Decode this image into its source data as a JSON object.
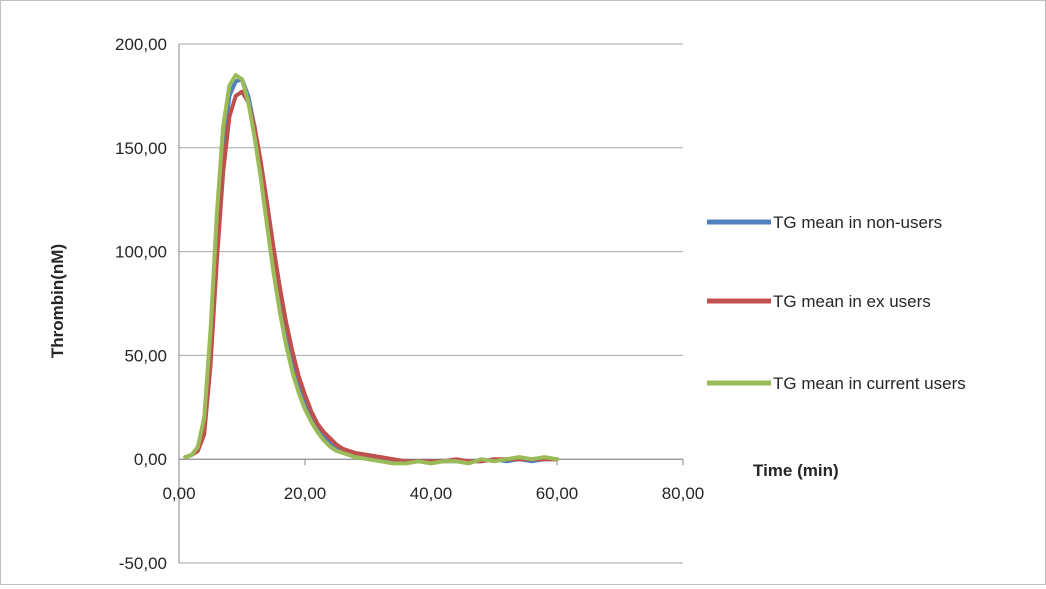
{
  "chart_data": {
    "type": "line",
    "title": "",
    "xlabel": "Time (min)",
    "ylabel": "Thrombin(nM)",
    "xlim": [
      0,
      80
    ],
    "ylim": [
      -50,
      200
    ],
    "x_ticks": [
      0,
      20,
      40,
      60,
      80
    ],
    "x_tick_labels": [
      "0,00",
      "20,00",
      "40,00",
      "60,00",
      "80,00"
    ],
    "y_ticks": [
      200,
      150,
      100,
      50,
      0,
      -50
    ],
    "y_tick_labels": [
      "200,00",
      "150,00",
      "100,00",
      "50,00",
      "0,00",
      "-50,00"
    ],
    "grid": "horizontal",
    "legend_position": "right",
    "series": [
      {
        "name": "TG mean in non-users",
        "color": "#4f81bd",
        "x": [
          1,
          2,
          3,
          4,
          5,
          6,
          7,
          8,
          9,
          10,
          11,
          12,
          13,
          14,
          15,
          16,
          17,
          18,
          19,
          20,
          21,
          22,
          23,
          24,
          25,
          26,
          27,
          28,
          30,
          32,
          34,
          36,
          38,
          40,
          42,
          44,
          46,
          48,
          50,
          52,
          54,
          56,
          58,
          60
        ],
        "y": [
          1,
          2,
          5,
          15,
          55,
          110,
          150,
          175,
          182,
          183,
          175,
          160,
          140,
          118,
          97,
          77,
          60,
          47,
          36,
          27,
          20,
          15,
          11,
          8,
          6,
          4,
          3,
          2,
          1,
          0,
          -1,
          -1,
          -1,
          -1,
          -1,
          -1,
          -1,
          -1,
          0,
          -1,
          0,
          -1,
          0,
          0
        ]
      },
      {
        "name": "TG mean in ex users",
        "color": "#c0504d",
        "x": [
          1,
          2,
          3,
          4,
          5,
          6,
          7,
          8,
          9,
          10,
          11,
          12,
          13,
          14,
          15,
          16,
          17,
          18,
          19,
          20,
          21,
          22,
          23,
          24,
          25,
          26,
          27,
          28,
          30,
          32,
          34,
          36,
          38,
          40,
          42,
          44,
          46,
          48,
          50,
          52,
          54,
          56,
          58,
          60
        ],
        "y": [
          1,
          2,
          4,
          12,
          45,
          95,
          138,
          165,
          175,
          177,
          172,
          160,
          143,
          123,
          102,
          83,
          66,
          52,
          40,
          31,
          23,
          17,
          13,
          10,
          7,
          5,
          4,
          3,
          2,
          1,
          0,
          -1,
          -1,
          -1,
          -1,
          0,
          -1,
          -1,
          0,
          0,
          0,
          0,
          0,
          0
        ]
      },
      {
        "name": "TG mean in current users",
        "color": "#9bbb59",
        "x": [
          1,
          2,
          3,
          4,
          5,
          6,
          7,
          8,
          9,
          10,
          11,
          12,
          13,
          14,
          15,
          16,
          17,
          18,
          19,
          20,
          21,
          22,
          23,
          24,
          25,
          26,
          27,
          28,
          30,
          32,
          34,
          36,
          38,
          40,
          42,
          44,
          46,
          48,
          50,
          52,
          54,
          56,
          58,
          60
        ],
        "y": [
          1,
          2,
          6,
          20,
          62,
          118,
          160,
          180,
          185,
          183,
          172,
          155,
          135,
          112,
          90,
          71,
          55,
          42,
          32,
          24,
          18,
          13,
          9,
          6,
          4,
          3,
          2,
          1,
          0,
          -1,
          -2,
          -2,
          -1,
          -2,
          -1,
          -1,
          -2,
          0,
          -1,
          0,
          1,
          0,
          1,
          0
        ]
      }
    ]
  }
}
